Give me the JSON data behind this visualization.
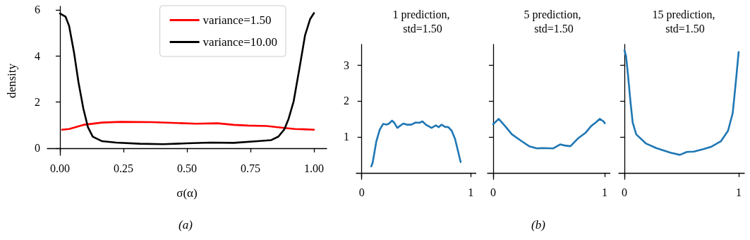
{
  "chart_data": [
    {
      "type": "line",
      "xlabel": "σ(α)",
      "ylabel": "density",
      "annotations": [
        "(a)"
      ],
      "legend": "top right",
      "xlim": [
        -0.05,
        1.05
      ],
      "ylim": [
        -0.31,
        6.15
      ],
      "xticks": [
        {
          "value": 0,
          "label": "0.00"
        },
        {
          "value": 0.25,
          "label": "0.25"
        },
        {
          "value": 0.5,
          "label": "0.50"
        },
        {
          "value": 0.75,
          "label": "0.75"
        },
        {
          "value": 1,
          "label": "1.00"
        }
      ],
      "yticks": [
        0,
        2,
        4,
        6
      ],
      "series": [
        {
          "name": "variance=1.50",
          "color": "#ff0000",
          "x": [
            0.008,
            0.036,
            0.092,
            0.166,
            0.24,
            0.36,
            0.46,
            0.536,
            0.62,
            0.684,
            0.74,
            0.814,
            0.87,
            0.925,
            0.96,
            1.0
          ],
          "values": [
            0.8,
            0.83,
            1.01,
            1.11,
            1.14,
            1.13,
            1.09,
            1.06,
            1.08,
            1.01,
            0.98,
            0.96,
            0.89,
            0.83,
            0.82,
            0.8
          ]
        },
        {
          "name": "variance=10.00",
          "color": "#000000",
          "x": [
            0,
            0.022,
            0.036,
            0.055,
            0.073,
            0.092,
            0.11,
            0.129,
            0.166,
            0.221,
            0.314,
            0.406,
            0.5,
            0.592,
            0.684,
            0.777,
            0.832,
            0.86,
            0.883,
            0.9,
            0.92,
            0.945,
            0.965,
            0.985,
            1.0
          ],
          "values": [
            5.84,
            5.7,
            5.3,
            4.17,
            2.85,
            1.72,
            0.91,
            0.5,
            0.3,
            0.24,
            0.19,
            0.17,
            0.21,
            0.24,
            0.23,
            0.3,
            0.35,
            0.5,
            0.81,
            1.27,
            2.03,
            3.6,
            4.9,
            5.6,
            5.86
          ]
        }
      ]
    },
    {
      "type": "line",
      "title": "1 prediction, std=1.50",
      "xlim": [
        -0.05,
        1.05
      ],
      "ylim": [
        -0.18,
        3.57
      ],
      "xticks": [
        {
          "value": 0,
          "label": "0"
        },
        {
          "value": 1,
          "label": "1"
        }
      ],
      "yticks": [
        1,
        2,
        3
      ],
      "series": [
        {
          "color": "#1f77b4",
          "x": [
            0.087,
            0.1,
            0.134,
            0.165,
            0.196,
            0.227,
            0.25,
            0.278,
            0.299,
            0.326,
            0.381,
            0.412,
            0.454,
            0.495,
            0.526,
            0.557,
            0.588,
            0.64,
            0.68,
            0.705,
            0.732,
            0.763,
            0.794,
            0.825,
            0.856,
            0.887,
            0.907
          ],
          "values": [
            0.18,
            0.28,
            0.88,
            1.2,
            1.36,
            1.34,
            1.37,
            1.45,
            1.39,
            1.25,
            1.37,
            1.34,
            1.34,
            1.4,
            1.39,
            1.43,
            1.34,
            1.25,
            1.32,
            1.27,
            1.34,
            1.28,
            1.27,
            1.17,
            0.94,
            0.55,
            0.3
          ]
        }
      ]
    },
    {
      "type": "line",
      "title": "5 prediction, std=1.50",
      "annotations": [
        "(b)"
      ],
      "tick_labels": "x",
      "xlim": [
        -0.05,
        1.05
      ],
      "ylim": [
        -0.18,
        3.57
      ],
      "xticks": [
        {
          "value": 0,
          "label": "0"
        },
        {
          "value": 1,
          "label": "1"
        }
      ],
      "yticks": [
        1,
        2,
        3
      ],
      "series": [
        {
          "color": "#1f77b4",
          "x": [
            0,
            0.05,
            0.107,
            0.169,
            0.251,
            0.323,
            0.395,
            0.447,
            0.539,
            0.601,
            0.642,
            0.693,
            0.765,
            0.827,
            0.878,
            0.92,
            0.955,
            0.99,
            1.0
          ],
          "values": [
            1.35,
            1.5,
            1.3,
            1.07,
            0.89,
            0.74,
            0.68,
            0.69,
            0.68,
            0.79,
            0.76,
            0.74,
            0.97,
            1.11,
            1.3,
            1.4,
            1.5,
            1.43,
            1.38
          ]
        }
      ]
    },
    {
      "type": "line",
      "title": "15 prediction, std=1.50",
      "tick_labels": "x",
      "xlim": [
        -0.05,
        1.05
      ],
      "ylim": [
        -0.18,
        3.57
      ],
      "xticks": [
        {
          "value": 0,
          "label": "0"
        },
        {
          "value": 1,
          "label": "1"
        }
      ],
      "yticks": [
        1,
        2,
        3
      ],
      "series": [
        {
          "color": "#1f77b4",
          "x": [
            0,
            0.014,
            0.031,
            0.052,
            0.072,
            0.103,
            0.186,
            0.278,
            0.402,
            0.485,
            0.546,
            0.608,
            0.691,
            0.763,
            0.845,
            0.907,
            0.948,
            0.979,
            1.0
          ],
          "values": [
            3.41,
            3.24,
            2.72,
            1.99,
            1.4,
            1.07,
            0.82,
            0.69,
            0.56,
            0.5,
            0.58,
            0.59,
            0.66,
            0.73,
            0.88,
            1.17,
            1.66,
            2.65,
            3.36
          ]
        }
      ]
    }
  ]
}
